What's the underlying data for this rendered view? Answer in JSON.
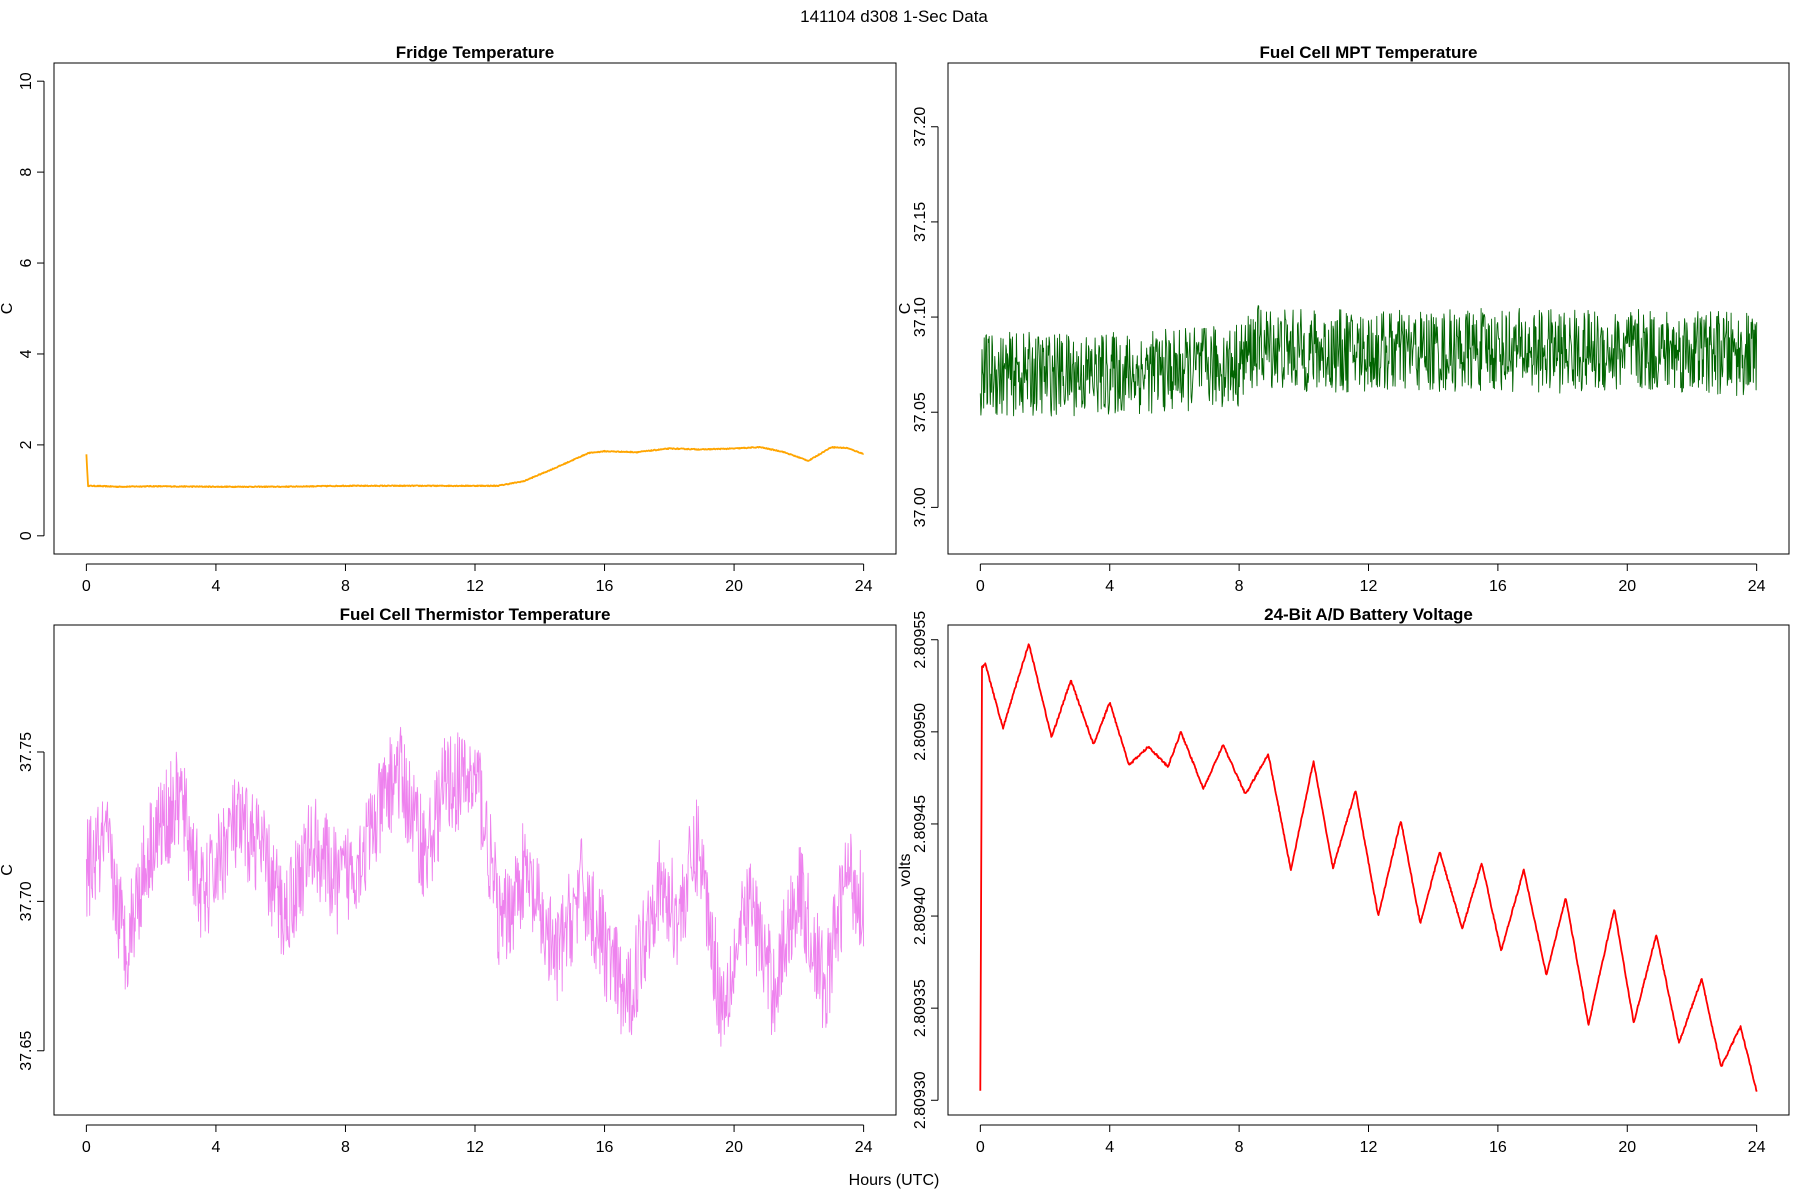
{
  "figure": {
    "title": "141104   d308   1-Sec Data",
    "xlabel": "Hours (UTC)"
  },
  "chart_data": [
    {
      "type": "line",
      "title": "Fridge Temperature",
      "xlabel": "",
      "ylabel": "C",
      "xlim": [
        -1,
        25
      ],
      "ylim": [
        -0.4,
        10.4
      ],
      "xticks": [
        "0",
        "4",
        "8",
        "12",
        "16",
        "20",
        "24"
      ],
      "yticks": [
        "0",
        "2",
        "4",
        "6",
        "8",
        "10"
      ],
      "color": "#ffa500",
      "noise": 0.01,
      "series": [
        {
          "x": [
            0,
            0.05,
            0.1,
            1,
            2,
            4,
            6,
            8,
            10,
            12,
            12.7,
            13.5,
            14.5,
            15.5,
            16,
            17,
            18,
            19,
            20,
            20.8,
            21.5,
            22.3,
            23,
            23.5,
            24
          ],
          "values": [
            1.8,
            1.1,
            1.1,
            1.08,
            1.09,
            1.08,
            1.08,
            1.1,
            1.1,
            1.1,
            1.1,
            1.2,
            1.5,
            1.82,
            1.86,
            1.84,
            1.92,
            1.9,
            1.92,
            1.95,
            1.85,
            1.65,
            1.95,
            1.93,
            1.8
          ]
        }
      ]
    },
    {
      "type": "line",
      "title": "Fuel Cell MPT Temperature",
      "xlabel": "",
      "ylabel": "C",
      "xlim": [
        -1,
        25
      ],
      "ylim": [
        36.9755,
        37.2335
      ],
      "xticks": [
        "0",
        "4",
        "8",
        "12",
        "16",
        "20",
        "24"
      ],
      "yticks": [
        "37.00",
        "37.05",
        "37.10",
        "37.15",
        "37.20"
      ],
      "color": "#006400",
      "noise": 0.022,
      "series": [
        {
          "x": [
            0,
            2,
            4,
            6,
            8,
            8.5,
            10,
            12,
            14,
            16,
            18,
            20,
            22,
            24
          ],
          "values": [
            37.07,
            37.07,
            37.07,
            37.072,
            37.075,
            37.085,
            37.082,
            37.082,
            37.082,
            37.083,
            37.082,
            37.082,
            37.082,
            37.08
          ]
        }
      ]
    },
    {
      "type": "line",
      "title": "Fuel Cell Thermistor Temperature",
      "xlabel": "",
      "ylabel": "C",
      "xlim": [
        -1,
        25
      ],
      "ylim": [
        37.6285,
        37.7925
      ],
      "xticks": [
        "0",
        "4",
        "8",
        "12",
        "16",
        "20",
        "24"
      ],
      "yticks": [
        "37.65",
        "37.70",
        "37.75"
      ],
      "color": "#ee82ee",
      "noise": 0.017,
      "series": [
        {
          "x": [
            0,
            0.6,
            1.2,
            2,
            2.9,
            3.6,
            4.5,
            5.3,
            6.1,
            7,
            7.8,
            8.7,
            9.6,
            10.5,
            11.1,
            12.1,
            12.8,
            13.5,
            14.5,
            15.3,
            16,
            16.7,
            17.6,
            18.3,
            18.9,
            19.6,
            20.5,
            21.2,
            22,
            22.8,
            23.5,
            24
          ],
          "values": [
            37.71,
            37.72,
            37.685,
            37.72,
            37.735,
            37.7,
            37.725,
            37.72,
            37.695,
            37.72,
            37.705,
            37.72,
            37.745,
            37.715,
            37.74,
            37.74,
            37.69,
            37.71,
            37.68,
            37.705,
            37.685,
            37.665,
            37.705,
            37.695,
            37.72,
            37.665,
            37.7,
            37.67,
            37.705,
            37.67,
            37.71,
            37.7
          ]
        }
      ]
    },
    {
      "type": "line",
      "title": "24-Bit A/D Battery Voltage",
      "xlabel": "",
      "ylabel": "volts",
      "xlim": [
        -1,
        25
      ],
      "ylim": [
        2.809292,
        2.809558
      ],
      "xticks": [
        "0",
        "4",
        "8",
        "12",
        "16",
        "20",
        "24"
      ],
      "yticks": [
        "2.80930",
        "2.80935",
        "2.80940",
        "2.80945",
        "2.80950",
        "2.80955"
      ],
      "color": "#ff0000",
      "noise": 6e-07,
      "series": [
        {
          "x": [
            0,
            0.05,
            0.15,
            0.7,
            1.5,
            2.2,
            2.8,
            3.5,
            4,
            4.6,
            5.2,
            5.8,
            6.2,
            6.9,
            7.5,
            8.2,
            8.9,
            9.6,
            10.3,
            10.9,
            11.6,
            12.3,
            13,
            13.6,
            14.2,
            14.9,
            15.5,
            16.1,
            16.8,
            17.5,
            18.1,
            18.8,
            19.6,
            20.2,
            20.9,
            21.6,
            22.3,
            22.9,
            23.5,
            24
          ],
          "values": [
            2.809305,
            2.809535,
            2.809537,
            2.809502,
            2.809548,
            2.809497,
            2.809528,
            2.809493,
            2.809516,
            2.809482,
            2.809492,
            2.809481,
            2.8095,
            2.809469,
            2.809493,
            2.809466,
            2.809488,
            2.809425,
            2.809484,
            2.809426,
            2.809468,
            2.8094,
            2.809452,
            2.809396,
            2.809435,
            2.809393,
            2.809429,
            2.809381,
            2.809425,
            2.809368,
            2.80941,
            2.809341,
            2.809404,
            2.809342,
            2.80939,
            2.809331,
            2.809366,
            2.809318,
            2.80934,
            2.809305
          ]
        }
      ]
    }
  ]
}
